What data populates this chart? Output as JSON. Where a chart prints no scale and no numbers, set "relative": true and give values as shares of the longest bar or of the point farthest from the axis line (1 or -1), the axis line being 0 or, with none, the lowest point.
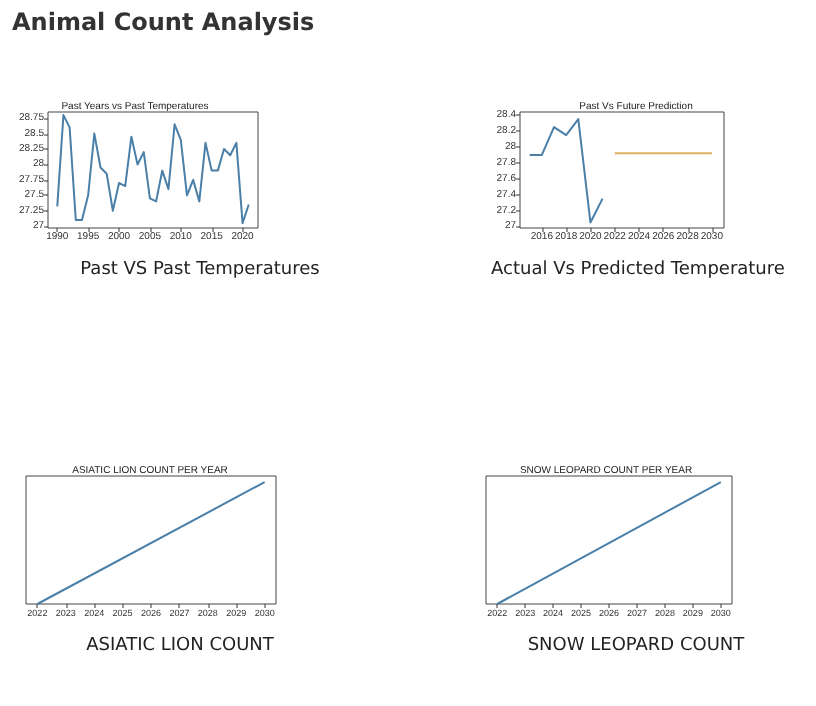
{
  "chart_data": [
    {
      "type": "line",
      "title": "Past Years vs Past Temperatures",
      "annotations": [
        "Animal Count Analysis",
        "Past VS Past Temperatures"
      ],
      "x": [
        1990,
        1991,
        1992,
        1993,
        1994,
        1995,
        1996,
        1997,
        1998,
        1999,
        2000,
        2001,
        2002,
        2003,
        2004,
        2005,
        2006,
        2007,
        2008,
        2009,
        2010,
        2011,
        2012,
        2013,
        2014,
        2015,
        2016,
        2017,
        2018,
        2019,
        2020,
        2021
      ],
      "series": [
        {
          "color": "#4a7fa8",
          "values": [
            27.32,
            28.8,
            28.6,
            27.1,
            27.1,
            27.5,
            28.5,
            27.95,
            27.85,
            27.25,
            27.7,
            27.65,
            28.45,
            28.0,
            28.2,
            27.45,
            27.4,
            27.9,
            27.6,
            28.65,
            28.4,
            27.5,
            27.75,
            27.4,
            28.35,
            27.9,
            27.9,
            28.25,
            28.15,
            28.35,
            27.05,
            27.35
          ]
        }
      ],
      "xlim": [
        1988.5,
        2022.5
      ],
      "xticks": [
        1990,
        1995,
        2000,
        2005,
        2010,
        2015,
        2020
      ],
      "ylim": [
        26.97,
        28.85
      ],
      "yticks": [
        27.0,
        27.25,
        27.5,
        27.75,
        28.0,
        28.25,
        28.5,
        28.75
      ]
    },
    {
      "type": "line",
      "title": "Past Vs Future Prediction",
      "annotations": [
        "Actual Vs Predicted Temperature"
      ],
      "series": [
        {
          "color": "#4a7fa8",
          "x": [
            2015,
            2016,
            2017,
            2018,
            2019,
            2020,
            2021
          ],
          "values": [
            27.9,
            27.9,
            28.25,
            28.15,
            28.35,
            27.05,
            27.35
          ]
        },
        {
          "color": "#e0b060",
          "x": [
            2022,
            2030
          ],
          "values": [
            27.92,
            27.92
          ]
        }
      ],
      "xlim": [
        2014.2,
        2031
      ],
      "xticks": [
        2016,
        2018,
        2020,
        2022,
        2024,
        2026,
        2028,
        2030
      ],
      "ylim": [
        26.98,
        28.44
      ],
      "yticks": [
        27.0,
        27.2,
        27.4,
        27.6,
        27.8,
        28.0,
        28.2,
        28.4
      ]
    },
    {
      "type": "line",
      "title": "ASIATIC LION COUNT PER YEAR",
      "annotations": [
        "ASIATIC LION COUNT"
      ],
      "relative": true,
      "x": [
        2022,
        2030
      ],
      "series": [
        {
          "color": "#4a7fa8",
          "values": [
            0,
            1
          ]
        }
      ],
      "xlim": [
        2021.6,
        2030.4
      ],
      "xticks": [
        2022,
        2023,
        2024,
        2025,
        2026,
        2027,
        2028,
        2029,
        2030
      ]
    },
    {
      "type": "line",
      "title": "SNOW LEOPARD COUNT PER YEAR",
      "annotations": [
        "SNOW LEOPARD COUNT"
      ],
      "relative": true,
      "x": [
        2022,
        2030
      ],
      "series": [
        {
          "color": "#4a7fa8",
          "values": [
            0,
            1
          ]
        }
      ],
      "xlim": [
        2021.6,
        2030.4
      ],
      "xticks": [
        2022,
        2023,
        2024,
        2025,
        2026,
        2027,
        2028,
        2029,
        2030
      ]
    }
  ]
}
